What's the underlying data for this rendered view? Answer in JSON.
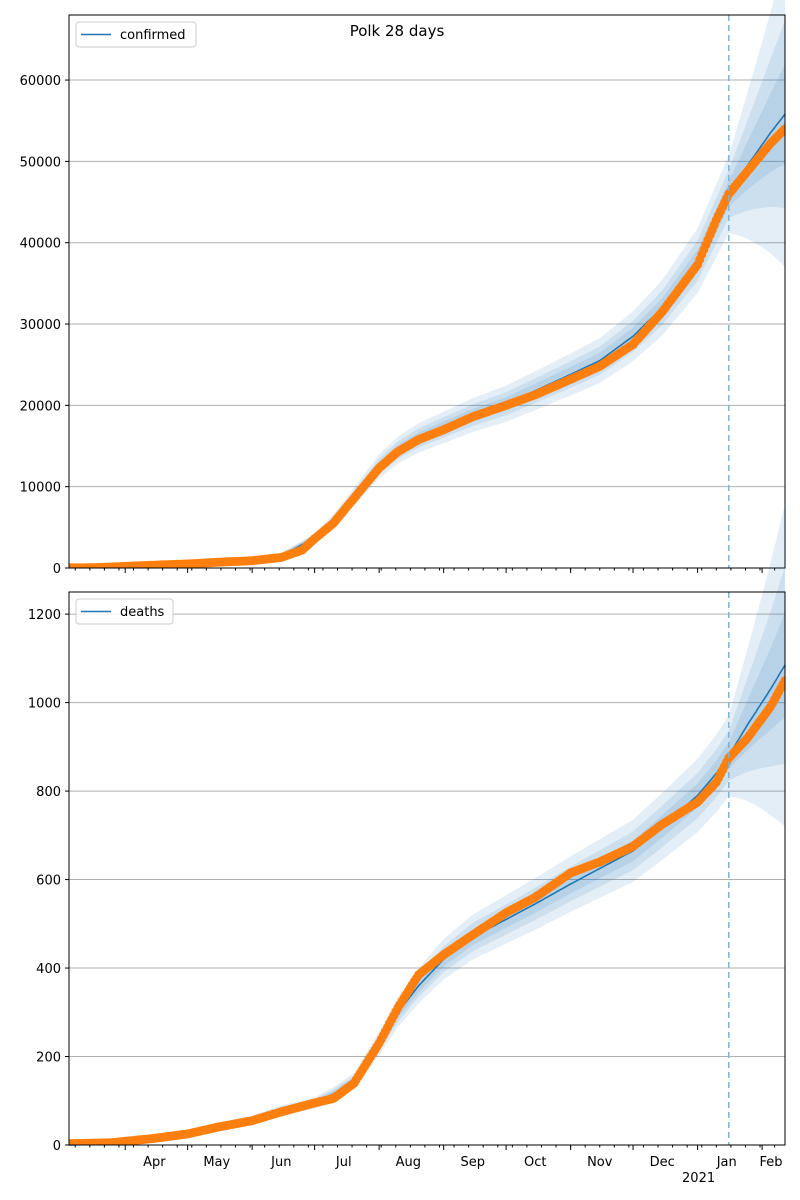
{
  "figure": {
    "title": "Polk 28 days"
  },
  "colors": {
    "model": "#1f77b4",
    "observed": "#ff7f0e",
    "band": "#1f77b4",
    "vline": "#7fb3d5",
    "grid": "#b0b0b0"
  },
  "x_axis": {
    "month_labels": [
      "Apr",
      "May",
      "Jun",
      "Jul",
      "Aug",
      "Sep",
      "Oct",
      "Nov",
      "Dec",
      "Jan",
      "Feb"
    ],
    "year_label": "2021"
  },
  "chart_data": [
    {
      "type": "line",
      "title": "Polk 28 days",
      "legend": "top-left",
      "grid": "horizontal",
      "x_range": [
        "2020-03-05",
        "2021-02-12"
      ],
      "forecast_start": "2021-01-16",
      "ylim": [
        0,
        68000
      ],
      "yticks": [
        0,
        10000,
        20000,
        30000,
        40000,
        50000,
        60000
      ],
      "series": [
        {
          "name": "confirmed",
          "kind": "model",
          "x": [
            "2020-03-05",
            "2020-04-01",
            "2020-05-01",
            "2020-06-01",
            "2020-06-15",
            "2020-07-01",
            "2020-07-10",
            "2020-07-20",
            "2020-08-01",
            "2020-08-10",
            "2020-08-20",
            "2020-09-01",
            "2020-09-15",
            "2020-10-01",
            "2020-10-15",
            "2020-11-01",
            "2020-11-15",
            "2020-12-01",
            "2020-12-15",
            "2021-01-01",
            "2021-01-10",
            "2021-01-16",
            "2021-01-25",
            "2021-02-05",
            "2021-02-12"
          ],
          "values": [
            30,
            200,
            550,
            1000,
            1500,
            3700,
            5800,
            8800,
            12500,
            14500,
            16000,
            17300,
            18800,
            20200,
            21800,
            23800,
            25500,
            28500,
            32000,
            37800,
            42700,
            46000,
            49500,
            53500,
            55800
          ]
        },
        {
          "name": "",
          "kind": "observed",
          "x": [
            "2020-03-05",
            "2020-03-20",
            "2020-04-01",
            "2020-04-15",
            "2020-05-01",
            "2020-05-15",
            "2020-06-01",
            "2020-06-15",
            "2020-06-25",
            "2020-07-01",
            "2020-07-10",
            "2020-07-20",
            "2020-08-01",
            "2020-08-10",
            "2020-08-20",
            "2020-09-01",
            "2020-09-15",
            "2020-10-01",
            "2020-10-15",
            "2020-11-01",
            "2020-11-15",
            "2020-12-01",
            "2020-12-15",
            "2021-01-01",
            "2021-01-10",
            "2021-01-16",
            "2021-01-25",
            "2021-02-05",
            "2021-02-12"
          ],
          "values": [
            20,
            60,
            200,
            350,
            500,
            700,
            900,
            1300,
            2200,
            3600,
            5500,
            8600,
            12300,
            14300,
            15800,
            17000,
            18600,
            20000,
            21300,
            23200,
            24800,
            27500,
            31500,
            37300,
            42800,
            46000,
            48800,
            52200,
            54000
          ]
        }
      ]
    },
    {
      "type": "line",
      "title": "",
      "legend": "top-left",
      "grid": "horizontal",
      "x_range": [
        "2020-03-05",
        "2021-02-12"
      ],
      "forecast_start": "2021-01-16",
      "ylim": [
        0,
        1250
      ],
      "yticks": [
        0,
        200,
        400,
        600,
        800,
        1000,
        1200
      ],
      "series": [
        {
          "name": "deaths",
          "kind": "model",
          "x": [
            "2020-03-05",
            "2020-03-25",
            "2020-04-15",
            "2020-05-01",
            "2020-05-15",
            "2020-06-01",
            "2020-06-15",
            "2020-07-01",
            "2020-07-10",
            "2020-07-20",
            "2020-08-01",
            "2020-08-10",
            "2020-08-20",
            "2020-09-01",
            "2020-09-15",
            "2020-10-01",
            "2020-10-15",
            "2020-11-01",
            "2020-11-15",
            "2020-12-01",
            "2020-12-15",
            "2021-01-01",
            "2021-01-10",
            "2021-01-16",
            "2021-01-25",
            "2021-02-05",
            "2021-02-12"
          ],
          "values": [
            0,
            3,
            15,
            27,
            42,
            57,
            78,
            95,
            115,
            145,
            230,
            300,
            360,
            420,
            470,
            510,
            545,
            590,
            625,
            665,
            720,
            790,
            840,
            880,
            950,
            1030,
            1085
          ]
        },
        {
          "name": "",
          "kind": "observed",
          "x": [
            "2020-03-05",
            "2020-03-25",
            "2020-04-15",
            "2020-05-01",
            "2020-05-15",
            "2020-06-01",
            "2020-06-15",
            "2020-07-01",
            "2020-07-10",
            "2020-07-20",
            "2020-08-01",
            "2020-08-10",
            "2020-08-20",
            "2020-09-01",
            "2020-09-15",
            "2020-10-01",
            "2020-10-15",
            "2020-11-01",
            "2020-11-15",
            "2020-12-01",
            "2020-12-15",
            "2021-01-01",
            "2021-01-10",
            "2021-01-16",
            "2021-01-25",
            "2021-02-05",
            "2021-02-12"
          ],
          "values": [
            3,
            5,
            15,
            25,
            40,
            55,
            75,
            95,
            105,
            140,
            230,
            310,
            385,
            430,
            475,
            525,
            560,
            615,
            640,
            675,
            725,
            775,
            820,
            875,
            920,
            990,
            1050
          ]
        }
      ]
    }
  ]
}
